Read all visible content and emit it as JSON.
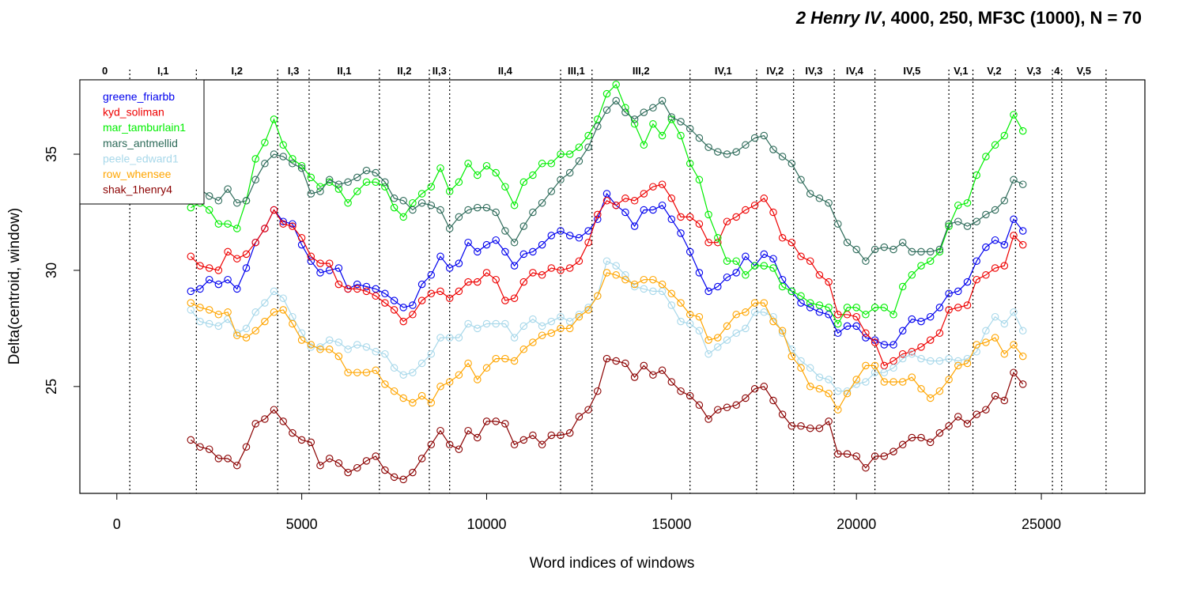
{
  "chart_data": {
    "type": "line",
    "title_italic": "2 Henry IV",
    "title_rest": ", 4000, 250, MF3C (1000), N = 70",
    "xlabel": "Word indices of windows",
    "ylabel": "Delta(centroid, window)",
    "xlim": [
      -1000,
      27800
    ],
    "ylim": [
      20.4,
      38.2
    ],
    "x_ticks": [
      0,
      5000,
      10000,
      15000,
      20000,
      25000
    ],
    "y_ticks": [
      25,
      30,
      35
    ],
    "scenes": [
      {
        "label": "0",
        "x": 350
      },
      {
        "label": "I,1",
        "x": 2150
      },
      {
        "label": "I,2",
        "x": 4350
      },
      {
        "label": "I,3",
        "x": 5200
      },
      {
        "label": "II,1",
        "x": 7100
      },
      {
        "label": "II,2",
        "x": 8450
      },
      {
        "label": "II,3",
        "x": 9000
      },
      {
        "label": "II,4",
        "x": 12000
      },
      {
        "label": "III,1",
        "x": 12850
      },
      {
        "label": "III,2",
        "x": 15500
      },
      {
        "label": "IV,1",
        "x": 17300
      },
      {
        "label": "IV,2",
        "x": 18300
      },
      {
        "label": "IV,3",
        "x": 19400
      },
      {
        "label": "IV,4",
        "x": 20500
      },
      {
        "label": "IV,5",
        "x": 22500
      },
      {
        "label": "V,1",
        "x": 23150
      },
      {
        "label": "V,2",
        "x": 24300
      },
      {
        "label": "V,3",
        "x": 25300
      },
      {
        "label": "4",
        "x": 25550
      },
      {
        "label": "V,5",
        "x": 26750
      }
    ],
    "x": [
      2000,
      2250,
      2500,
      2750,
      3000,
      3250,
      3500,
      3750,
      4000,
      4250,
      4500,
      4750,
      5000,
      5250,
      5500,
      5750,
      6000,
      6250,
      6500,
      6750,
      7000,
      7250,
      7500,
      7750,
      8000,
      8250,
      8500,
      8750,
      9000,
      9250,
      9500,
      9750,
      10000,
      10250,
      10500,
      10750,
      11000,
      11250,
      11500,
      11750,
      12000,
      12250,
      12500,
      12750,
      13000,
      13250,
      13500,
      13750,
      14000,
      14250,
      14500,
      14750,
      15000,
      15250,
      15500,
      15750,
      16000,
      16250,
      16500,
      16750,
      17000,
      17250,
      17500,
      17750,
      18000,
      18250,
      18500,
      18750,
      19000,
      19250,
      19500,
      19750,
      20000,
      20250,
      20500,
      20750,
      21000,
      21250,
      21500,
      21750,
      22000,
      22250,
      22500,
      22750,
      23000,
      23250,
      23500,
      23750,
      24000,
      24250,
      24500
    ],
    "series": [
      {
        "name": "greene_friarbb",
        "color": "#0000ee",
        "values": [
          29.1,
          29.2,
          29.6,
          29.4,
          29.6,
          29.2,
          30.1,
          31.2,
          31.8,
          32.6,
          32.1,
          32.0,
          31.1,
          30.4,
          29.9,
          30.0,
          30.1,
          29.2,
          29.4,
          29.3,
          29.2,
          29.0,
          28.7,
          28.4,
          28.5,
          29.4,
          29.8,
          30.6,
          30.1,
          30.3,
          31.2,
          30.8,
          31.1,
          31.3,
          30.8,
          30.2,
          30.7,
          30.8,
          31.1,
          31.5,
          31.7,
          31.5,
          31.4,
          31.7,
          32.2,
          33.3,
          32.8,
          32.5,
          31.9,
          32.6,
          32.6,
          32.8,
          32.2,
          31.6,
          30.8,
          29.9,
          29.1,
          29.3,
          29.7,
          29.9,
          30.6,
          30.2,
          30.7,
          30.5,
          29.6,
          29.1,
          28.6,
          28.4,
          28.2,
          28.1,
          27.3,
          27.6,
          27.6,
          27.1,
          27.0,
          26.8,
          26.8,
          27.4,
          27.9,
          27.8,
          28.0,
          28.4,
          29.0,
          29.1,
          29.5,
          30.4,
          31.0,
          31.3,
          31.1,
          32.2,
          31.7
        ]
      },
      {
        "name": "kyd_soliman",
        "color": "#ee0000",
        "values": [
          30.6,
          30.2,
          30.1,
          30.0,
          30.8,
          30.5,
          30.7,
          31.2,
          31.8,
          32.6,
          32.0,
          31.9,
          31.4,
          30.6,
          30.3,
          30.3,
          29.4,
          29.2,
          29.2,
          29.1,
          28.9,
          28.6,
          28.3,
          27.8,
          28.1,
          28.7,
          29.0,
          29.1,
          28.8,
          29.1,
          29.5,
          29.5,
          29.9,
          29.6,
          28.7,
          28.8,
          29.5,
          29.9,
          29.8,
          30.1,
          30.0,
          30.1,
          30.4,
          31.2,
          32.4,
          33.0,
          32.8,
          33.1,
          33.0,
          33.3,
          33.6,
          33.7,
          33.1,
          32.3,
          32.3,
          32.0,
          31.2,
          31.2,
          32.1,
          32.3,
          32.6,
          32.8,
          33.1,
          32.5,
          31.4,
          31.2,
          30.6,
          30.4,
          29.8,
          29.5,
          28.1,
          28.1,
          28.0,
          27.3,
          26.9,
          25.9,
          26.1,
          26.4,
          26.5,
          26.7,
          27.0,
          27.3,
          28.3,
          28.4,
          28.5,
          29.6,
          29.8,
          30.1,
          30.2,
          31.5,
          31.1
        ]
      },
      {
        "name": "mar_tamburlain1",
        "color": "#00ee00",
        "values": [
          32.7,
          32.9,
          32.6,
          32.0,
          32.0,
          31.8,
          33.0,
          34.8,
          35.5,
          36.5,
          35.4,
          34.8,
          34.5,
          34.0,
          33.6,
          33.8,
          33.5,
          32.9,
          33.4,
          33.8,
          33.8,
          33.6,
          32.7,
          32.3,
          32.9,
          33.3,
          33.6,
          34.4,
          33.4,
          33.8,
          34.6,
          34.1,
          34.5,
          34.2,
          33.6,
          32.8,
          33.8,
          34.1,
          34.6,
          34.6,
          35.0,
          35.0,
          35.3,
          35.8,
          36.5,
          37.6,
          38.0,
          37.0,
          36.3,
          35.4,
          36.3,
          35.8,
          36.5,
          35.8,
          34.6,
          33.9,
          32.4,
          31.4,
          30.4,
          30.4,
          29.8,
          30.2,
          30.2,
          30.1,
          29.3,
          29.1,
          28.9,
          28.6,
          28.5,
          28.4,
          27.7,
          28.4,
          28.4,
          28.1,
          28.4,
          28.4,
          28.1,
          29.3,
          29.8,
          30.2,
          30.4,
          30.8,
          31.9,
          32.8,
          32.9,
          34.1,
          34.9,
          35.4,
          35.8,
          36.7,
          36.0
        ]
      },
      {
        "name": "mars_antmellid",
        "color": "#2e6b5a",
        "values": [
          33.4,
          33.5,
          33.2,
          33.0,
          33.5,
          32.9,
          33.0,
          33.9,
          34.6,
          35.0,
          34.9,
          34.6,
          34.4,
          33.3,
          33.4,
          33.9,
          33.7,
          33.8,
          34.0,
          34.3,
          34.2,
          33.8,
          33.1,
          33.0,
          32.6,
          32.9,
          32.8,
          32.6,
          31.8,
          32.3,
          32.6,
          32.7,
          32.7,
          32.5,
          31.7,
          31.2,
          31.9,
          32.5,
          32.9,
          33.4,
          33.9,
          34.2,
          34.7,
          35.3,
          36.2,
          36.9,
          37.3,
          36.8,
          36.5,
          36.8,
          37.0,
          37.3,
          36.6,
          36.4,
          36.1,
          35.7,
          35.3,
          35.1,
          35.0,
          35.1,
          35.4,
          35.7,
          35.8,
          35.2,
          34.9,
          34.6,
          33.9,
          33.3,
          33.1,
          32.9,
          32.0,
          31.2,
          30.9,
          30.4,
          30.9,
          31.0,
          30.9,
          31.2,
          30.8,
          30.8,
          30.8,
          30.9,
          32.0,
          32.1,
          31.9,
          32.1,
          32.4,
          32.6,
          33.0,
          33.9,
          33.7
        ]
      },
      {
        "name": "peele_edward1",
        "color": "#a8d8ea",
        "values": [
          28.3,
          27.8,
          27.7,
          27.6,
          27.9,
          27.3,
          27.5,
          28.2,
          28.6,
          29.1,
          28.8,
          28.0,
          27.3,
          26.7,
          26.7,
          27.0,
          26.9,
          26.6,
          26.8,
          26.7,
          26.5,
          26.4,
          25.8,
          25.5,
          25.6,
          26.0,
          26.4,
          27.1,
          27.1,
          27.1,
          27.7,
          27.5,
          27.7,
          27.7,
          27.7,
          27.1,
          27.6,
          27.9,
          27.6,
          27.8,
          28.0,
          27.8,
          28.1,
          28.4,
          28.9,
          30.4,
          30.2,
          29.8,
          29.3,
          29.2,
          29.1,
          29.1,
          28.5,
          27.8,
          27.7,
          27.4,
          26.4,
          26.7,
          27.0,
          27.3,
          27.5,
          28.2,
          28.2,
          28.0,
          27.3,
          26.6,
          26.1,
          25.8,
          25.4,
          25.3,
          24.8,
          24.8,
          25.1,
          25.2,
          25.6,
          25.6,
          25.8,
          26.2,
          26.4,
          26.2,
          26.1,
          26.1,
          26.2,
          26.1,
          26.2,
          26.5,
          27.4,
          28.0,
          27.7,
          28.2,
          27.4
        ]
      },
      {
        "name": "row_whensee",
        "color": "#ffa500",
        "values": [
          28.6,
          28.4,
          28.3,
          28.1,
          28.2,
          27.2,
          27.1,
          27.4,
          27.8,
          28.2,
          28.3,
          27.7,
          27.0,
          26.8,
          26.6,
          26.6,
          26.3,
          25.6,
          25.6,
          25.6,
          25.7,
          25.1,
          24.8,
          24.5,
          24.3,
          24.6,
          24.3,
          25.0,
          25.2,
          25.5,
          26.0,
          25.3,
          25.8,
          26.2,
          26.2,
          26.1,
          26.6,
          26.9,
          27.2,
          27.3,
          27.5,
          27.5,
          28.0,
          28.3,
          28.9,
          29.9,
          29.8,
          29.6,
          29.4,
          29.6,
          29.6,
          29.4,
          29.0,
          28.6,
          28.1,
          28.0,
          27.0,
          27.1,
          27.6,
          28.1,
          28.2,
          28.6,
          28.6,
          27.8,
          27.4,
          26.3,
          25.8,
          25.0,
          24.9,
          24.7,
          24.0,
          24.7,
          25.3,
          25.9,
          25.9,
          25.2,
          25.2,
          25.2,
          25.4,
          24.9,
          24.5,
          24.8,
          25.3,
          25.9,
          26.0,
          26.8,
          26.9,
          27.1,
          26.4,
          26.8,
          26.3
        ]
      },
      {
        "name": "shak_1henry4",
        "color": "#8b0000",
        "values": [
          22.7,
          22.4,
          22.3,
          21.9,
          21.9,
          21.6,
          22.4,
          23.4,
          23.6,
          24.0,
          23.5,
          23.0,
          22.7,
          22.6,
          21.6,
          21.9,
          21.7,
          21.3,
          21.5,
          21.8,
          22.0,
          21.4,
          21.1,
          21.0,
          21.3,
          21.9,
          22.5,
          23.1,
          22.5,
          22.3,
          23.1,
          22.8,
          23.5,
          23.5,
          23.4,
          22.5,
          22.7,
          22.9,
          22.5,
          22.9,
          22.9,
          23.0,
          23.7,
          24.0,
          24.8,
          26.2,
          26.1,
          26.0,
          25.4,
          25.9,
          25.5,
          25.7,
          25.2,
          24.8,
          24.6,
          24.2,
          23.6,
          24.0,
          24.1,
          24.2,
          24.5,
          24.9,
          25.0,
          24.4,
          23.8,
          23.3,
          23.3,
          23.2,
          23.2,
          23.5,
          22.1,
          22.1,
          22.0,
          21.5,
          22.0,
          22.0,
          22.2,
          22.5,
          22.8,
          22.8,
          22.6,
          23.0,
          23.3,
          23.7,
          23.4,
          23.8,
          24.0,
          24.6,
          24.4,
          25.6,
          25.1
        ]
      }
    ]
  }
}
